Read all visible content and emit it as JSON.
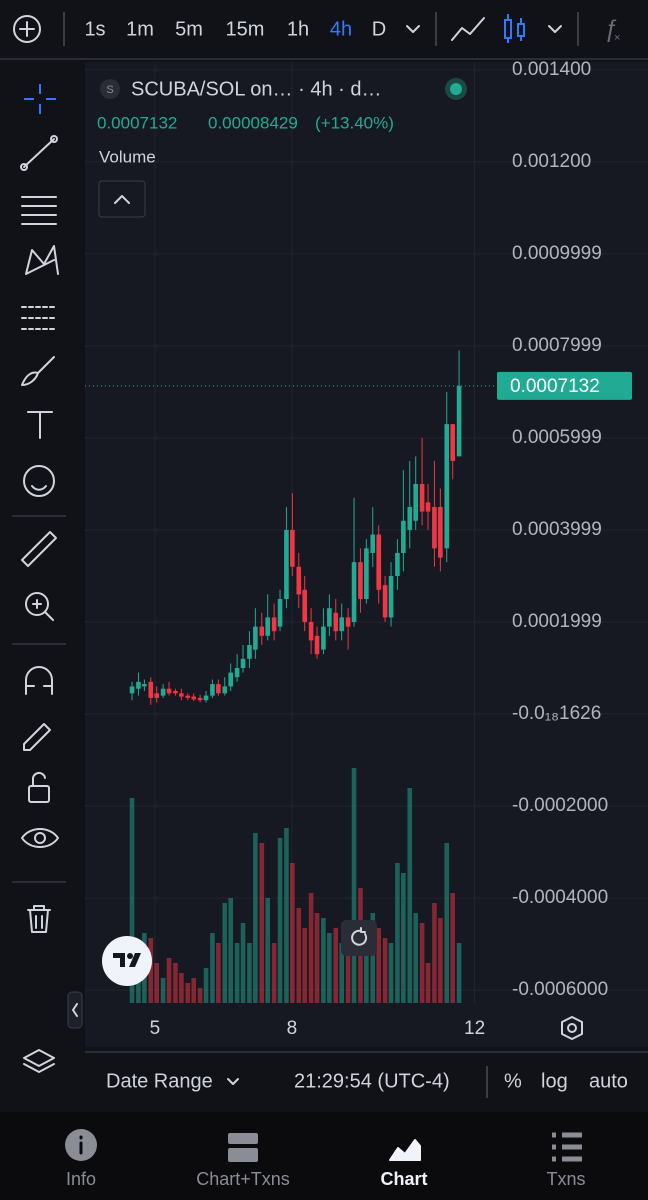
{
  "toolbar": {
    "intervals": [
      "1s",
      "1m",
      "5m",
      "15m",
      "1h",
      "4h",
      "D"
    ],
    "active_interval": 5
  },
  "legend": {
    "symbol": "SCUBA/SOL on… · 4h · d…",
    "symbol_badge": "S",
    "price": "0.0007132",
    "change": "0.00008429",
    "change_pct": "(+13.40%)",
    "volume": "Volume"
  },
  "chart_data": {
    "type": "candlestick",
    "x": [
      4.5,
      4.64,
      4.77,
      4.91,
      5.04,
      5.18,
      5.31,
      5.45,
      5.58,
      5.72,
      5.85,
      5.99,
      6.12,
      6.26,
      6.39,
      6.53,
      6.66,
      6.8,
      6.93,
      7.07,
      7.2,
      7.34,
      7.47,
      7.61,
      7.74,
      7.88,
      8.01,
      8.15,
      8.28,
      8.42,
      8.55,
      8.69,
      8.82,
      8.96,
      9.09,
      9.23,
      9.36,
      9.5,
      9.63,
      9.77,
      9.9,
      10.04,
      10.17,
      10.31,
      10.44,
      10.58,
      10.71,
      10.85,
      10.98,
      11.12,
      11.25,
      11.39,
      11.52,
      11.66
    ],
    "open": [
      4.5e-05,
      5.5e-05,
      6e-05,
      7e-05,
      4.5e-05,
      4e-05,
      5.5e-05,
      5e-05,
      4.5e-05,
      4e-05,
      3.8e-05,
      3.5e-05,
      3e-05,
      4e-05,
      6.5e-05,
      4.5e-05,
      6e-05,
      8e-05,
      0.0001,
      0.00012,
      0.00014,
      0.00019,
      0.00017,
      0.00021,
      0.00019,
      0.00025,
      0.0004,
      0.00032,
      0.00027,
      0.0002,
      0.00017,
      0.00014,
      0.00019,
      0.00022,
      0.00018,
      0.00021,
      0.0002,
      0.00033,
      0.00025,
      0.00035,
      0.00039,
      0.00028,
      0.00021,
      0.0003,
      0.00035,
      0.0004,
      0.00042,
      0.0005,
      0.00046,
      0.00045,
      0.00045,
      0.00036,
      0.00063,
      0.00056
    ],
    "high": [
      7e-05,
      9e-05,
      7.5e-05,
      8e-05,
      6e-05,
      6.5e-05,
      7e-05,
      5.5e-05,
      5.5e-05,
      4.5e-05,
      4.5e-05,
      4.2e-05,
      5e-05,
      7.5e-05,
      7.5e-05,
      8e-05,
      0.00011,
      0.00013,
      0.00015,
      0.00018,
      0.00023,
      0.00022,
      0.00026,
      0.00024,
      0.00027,
      0.00045,
      0.00048,
      0.00035,
      0.0003,
      0.00023,
      0.00019,
      0.00023,
      0.00026,
      0.00025,
      0.00024,
      0.00023,
      0.00047,
      0.00036,
      0.00038,
      0.00045,
      0.00041,
      0.0003,
      0.00033,
      0.00038,
      0.00053,
      0.00055,
      0.00056,
      0.0006,
      0.0005,
      0.00055,
      0.00049,
      0.0007,
      0.00063,
      0.00079
    ],
    "low": [
      3e-05,
      4e-05,
      5e-05,
      2e-05,
      2.5e-05,
      3.5e-05,
      4e-05,
      4e-05,
      3e-05,
      3e-05,
      2.8e-05,
      2.5e-05,
      2.5e-05,
      3.5e-05,
      4e-05,
      4e-05,
      5e-05,
      7e-05,
      9e-05,
      0.0001,
      0.00012,
      0.00015,
      0.00016,
      0.00016,
      0.00018,
      0.00023,
      0.0003,
      0.00023,
      0.00018,
      0.00013,
      0.00012,
      0.00013,
      0.00017,
      0.00016,
      0.00016,
      0.00014,
      0.00019,
      0.00022,
      0.00024,
      0.00032,
      0.00024,
      0.0002,
      0.00019,
      0.00027,
      0.00031,
      0.00036,
      0.0004,
      0.00041,
      0.0004,
      0.00032,
      0.00031,
      0.00033,
      0.00051,
      0.00056
    ],
    "close": [
      6e-05,
      7e-05,
      6.5e-05,
      3.5e-05,
      3.5e-05,
      5.5e-05,
      4.5e-05,
      4.5e-05,
      3.8e-05,
      3.5e-05,
      3.2e-05,
      3e-05,
      4e-05,
      6.5e-05,
      4.5e-05,
      6e-05,
      9e-05,
      0.0001,
      0.00012,
      0.00015,
      0.00019,
      0.00017,
      0.00021,
      0.00018,
      0.00025,
      0.0004,
      0.00032,
      0.00026,
      0.0002,
      0.00016,
      0.00013,
      0.00019,
      0.00023,
      0.00018,
      0.00021,
      0.00019,
      0.00033,
      0.00025,
      0.00036,
      0.00039,
      0.00027,
      0.00021,
      0.0003,
      0.00035,
      0.00042,
      0.00045,
      0.0005,
      0.00044,
      0.00044,
      0.00036,
      0.00034,
      0.00063,
      0.00055,
      0.0007132
    ],
    "volume": [
      205,
      60,
      70,
      65,
      40,
      25,
      45,
      40,
      30,
      20,
      25,
      15,
      35,
      70,
      60,
      100,
      105,
      60,
      80,
      60,
      170,
      160,
      105,
      60,
      165,
      175,
      140,
      95,
      75,
      110,
      90,
      85,
      70,
      75,
      60,
      80,
      235,
      115,
      80,
      90,
      75,
      65,
      60,
      140,
      130,
      215,
      90,
      80,
      40,
      100,
      85,
      160,
      110,
      60
    ],
    "up_color": "#22ab94",
    "down_color": "#f23645",
    "xlim": [
      3.47,
      12.49
    ],
    "xticks": [
      5,
      8,
      12
    ],
    "ylim": [
      -0.000628,
      0.001417
    ],
    "yticks": [
      {
        "value": 0.0014,
        "label": "0.001400"
      },
      {
        "value": 0.0012,
        "label": "0.001200"
      },
      0.0009999,
      0.0007999,
      0.0005999,
      0.0003999,
      0.0001999,
      {
        "value": -1.626e-22,
        "label": "-0.0₁₈1626"
      },
      {
        "value": -0.0002,
        "label": "-0.0002000"
      },
      {
        "value": -0.0004,
        "label": "-0.0004000"
      },
      {
        "value": -0.0006,
        "label": "-0.0006000"
      }
    ],
    "last_price": 0.0007132,
    "grid": true
  },
  "bottom_bar": {
    "date_range": "Date Range",
    "time": "21:29:54 (UTC-4)",
    "percent": "%",
    "log": "log",
    "auto": "auto"
  },
  "tabs": [
    "Info",
    "Chart+Txns",
    "Chart",
    "Txns"
  ],
  "active_tab": 2
}
